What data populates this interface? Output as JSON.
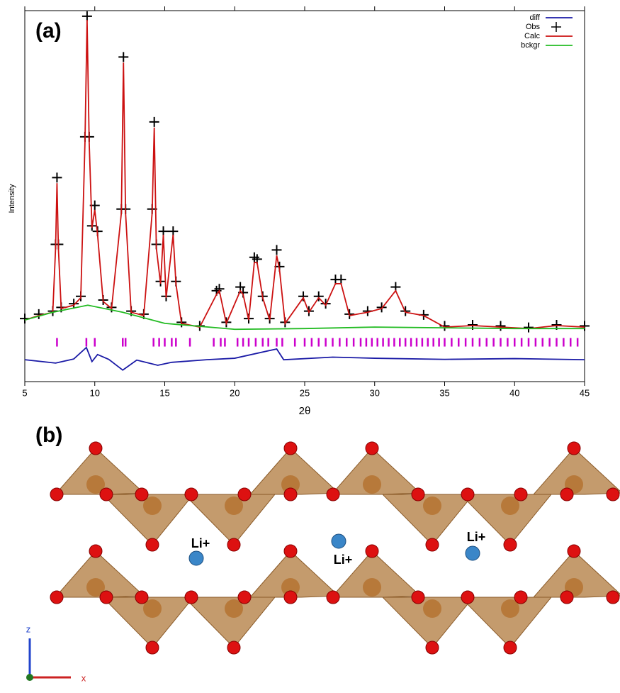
{
  "chart_data": {
    "type": "line",
    "panel_label": "(a)",
    "x_label": "2θ",
    "y_label": "Intensity",
    "xlim": [
      5,
      45
    ],
    "xticks": [
      5,
      10,
      15,
      20,
      25,
      30,
      35,
      40,
      45
    ],
    "ylim": [
      0,
      100
    ],
    "legend": "upper right",
    "series": [
      {
        "name": "diff",
        "color": "#1a1aa6",
        "style": "line",
        "x": [
          5,
          7.2,
          8.5,
          9.4,
          9.8,
          10.2,
          11,
          12,
          13,
          14.5,
          15.5,
          18,
          20,
          23,
          23.5,
          27,
          30,
          35,
          40,
          45
        ],
        "values": [
          5.9,
          5.0,
          6.1,
          9.2,
          5.4,
          7.3,
          6.0,
          3.1,
          5.8,
          4.4,
          5.2,
          5.9,
          6.3,
          8.8,
          5.9,
          6.6,
          6.3,
          6.0,
          6.2,
          5.9
        ]
      },
      {
        "name": "Obs",
        "color": "#000000",
        "style": "marker",
        "x": [
          5,
          6,
          7,
          7.2,
          7.3,
          7.4,
          7.6,
          8.5,
          9.0,
          9.3,
          9.45,
          9.6,
          9.8,
          10.0,
          10.2,
          10.6,
          11.2,
          11.9,
          12.05,
          12.2,
          12.6,
          13.5,
          14.1,
          14.25,
          14.4,
          14.7,
          14.9,
          15.1,
          15.6,
          15.8,
          16.2,
          17.5,
          18.7,
          18.9,
          19.4,
          20.4,
          20.6,
          21.0,
          21.4,
          21.6,
          22.0,
          22.5,
          23.0,
          23.2,
          23.6,
          24.9,
          25.3,
          26.0,
          26.5,
          27.2,
          27.6,
          28.2,
          29.5,
          30.5,
          31.5,
          32.2,
          33.5,
          35,
          37,
          39,
          41,
          43,
          45
        ],
        "values": [
          17.0,
          18.2,
          19.0,
          37.0,
          55.0,
          37.0,
          20.0,
          21.0,
          23.0,
          66.0,
          98.5,
          66.0,
          42.0,
          47.5,
          40.5,
          22.0,
          20.0,
          46.5,
          87.5,
          46.5,
          19.0,
          18.2,
          46.5,
          70.0,
          37.0,
          27.0,
          40.5,
          23.0,
          40.5,
          27.0,
          16.0,
          15.0,
          24.5,
          25.0,
          16.0,
          25.5,
          24.0,
          17.0,
          33.5,
          33.0,
          23.0,
          17.0,
          35.5,
          31.0,
          16.0,
          23.0,
          19.0,
          23.0,
          21.0,
          27.5,
          27.5,
          18.2,
          19.0,
          20.0,
          25.5,
          19.0,
          18.0,
          15.0,
          15.3,
          15.0,
          14.6,
          15.3,
          15.0
        ]
      },
      {
        "name": "Calc",
        "color": "#cc1111",
        "style": "line",
        "x": [
          5,
          6,
          7,
          7.2,
          7.3,
          7.4,
          7.6,
          8.5,
          9.0,
          9.3,
          9.45,
          9.6,
          9.8,
          10.0,
          10.2,
          10.6,
          11.2,
          11.9,
          12.05,
          12.2,
          12.6,
          13.5,
          14.1,
          14.25,
          14.4,
          14.7,
          14.9,
          15.1,
          15.6,
          15.8,
          16.2,
          17.5,
          18.7,
          18.9,
          19.4,
          20.4,
          20.6,
          21.0,
          21.4,
          21.6,
          22.0,
          22.5,
          23.0,
          23.2,
          23.6,
          24.9,
          25.3,
          26.0,
          26.5,
          27.2,
          27.6,
          28.2,
          29.5,
          30.5,
          31.5,
          32.2,
          33.5,
          35,
          37,
          39,
          41,
          43,
          45
        ],
        "values": [
          16.6,
          17.8,
          18.7,
          36.0,
          53.5,
          36.0,
          19.7,
          20.6,
          22.6,
          64.6,
          97.5,
          64.6,
          41.5,
          46.3,
          39.6,
          21.6,
          19.7,
          45.5,
          86.0,
          45.5,
          18.7,
          17.8,
          45.5,
          68.5,
          36.0,
          26.4,
          39.6,
          22.6,
          39.6,
          26.4,
          15.7,
          14.7,
          23.5,
          24.5,
          15.7,
          24.5,
          23.5,
          16.6,
          32.1,
          32.1,
          22.6,
          16.6,
          34.0,
          30.2,
          15.7,
          22.6,
          18.7,
          22.6,
          20.6,
          26.4,
          26.4,
          17.8,
          18.7,
          19.7,
          24.5,
          18.7,
          17.8,
          14.7,
          15.1,
          14.7,
          14.3,
          15.1,
          14.7
        ]
      },
      {
        "name": "bckgr",
        "color": "#22bb22",
        "style": "line",
        "x": [
          5,
          7,
          9.5,
          12,
          15,
          20,
          25,
          30,
          35,
          40,
          45
        ],
        "values": [
          16.6,
          18.7,
          20.6,
          18.7,
          15.7,
          14.1,
          14.3,
          14.7,
          14.5,
          14.3,
          14.3
        ]
      }
    ],
    "reflections": {
      "color": "#cc00cc",
      "value": 10.6,
      "x": [
        7.3,
        9.4,
        10.0,
        12.0,
        12.2,
        14.2,
        14.6,
        15.0,
        15.5,
        15.8,
        16.8,
        18.5,
        19.0,
        19.3,
        20.2,
        20.6,
        21.0,
        21.5,
        22.0,
        22.4,
        23.0,
        23.4,
        24.3,
        25.0,
        25.5,
        26.0,
        26.5,
        27.0,
        27.5,
        28.0,
        28.5,
        29.0,
        29.4,
        29.8,
        30.2,
        30.6,
        31.0,
        31.4,
        31.8,
        32.2,
        32.6,
        33.0,
        33.4,
        33.8,
        34.2,
        34.6,
        35.0,
        35.5,
        36.0,
        36.5,
        37.0,
        37.5,
        38.0,
        38.5,
        39.0,
        39.5,
        40.0,
        40.5,
        41.0,
        41.5,
        42.0,
        42.5,
        43.0,
        43.5,
        44.0,
        44.5
      ]
    }
  },
  "panel_b": {
    "label": "(b)",
    "ions": [
      "Li+",
      "Li+",
      "Li+"
    ],
    "axes": [
      "z",
      "x"
    ]
  }
}
